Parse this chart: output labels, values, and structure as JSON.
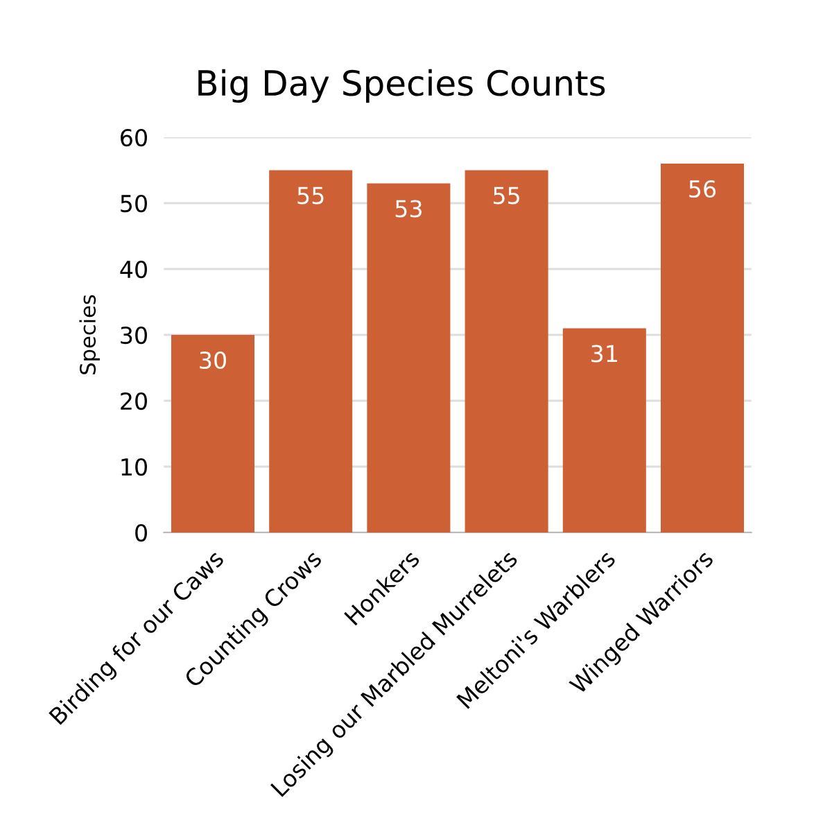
{
  "chart_data": {
    "type": "bar",
    "title": "Big Day Species Counts",
    "ylabel": "Species",
    "categories": [
      "Birding for our Caws",
      "Counting Crows",
      "Honkers",
      "Losing our Marbled Murrelets",
      "Meltoni's Warblers",
      "Winged Warriors"
    ],
    "values": [
      30,
      55,
      53,
      55,
      31,
      56
    ],
    "color": "#cd6034",
    "ylim": [
      0,
      60
    ],
    "yticks": [
      0,
      10,
      20,
      30,
      40,
      50,
      60
    ],
    "grid": "y",
    "data_labels": true
  }
}
